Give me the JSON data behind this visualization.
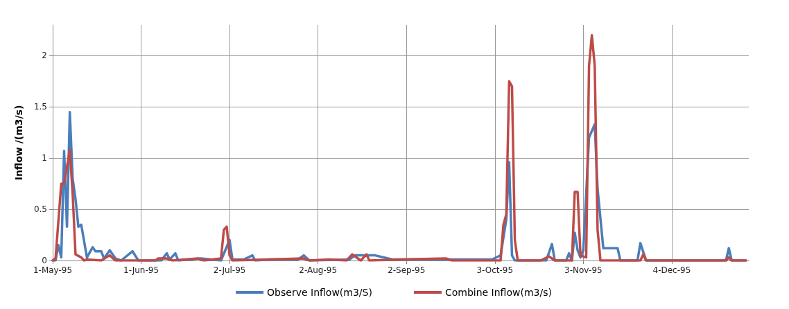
{
  "chart_data": {
    "type": "line",
    "ylabel": "Inflow /(m3/s)",
    "xlim": [
      "1995-05-01",
      "1995-12-31"
    ],
    "ylim": [
      0,
      2.3
    ],
    "yticks": [
      0,
      0.5,
      1,
      1.5,
      2
    ],
    "xticks": [
      {
        "value": "1995-05-01",
        "label": "1-May-95"
      },
      {
        "value": "1995-06-01",
        "label": "1-Jun-95"
      },
      {
        "value": "1995-07-02",
        "label": "2-Jul-95"
      },
      {
        "value": "1995-08-02",
        "label": "2-Aug-95"
      },
      {
        "value": "1995-09-02",
        "label": "2-Sep-95"
      },
      {
        "value": "1995-10-03",
        "label": "3-Oct-95"
      },
      {
        "value": "1995-11-03",
        "label": "3-Nov-95"
      },
      {
        "value": "1995-12-04",
        "label": "4-Dec-95"
      }
    ],
    "grid": true,
    "legend": "bottom",
    "marker": "none",
    "line_style": "solid",
    "series": [
      {
        "name": "Observe Inflow(m3/S)",
        "color": "#4a7ebb",
        "x": [
          "1995-05-01",
          "1995-05-02",
          "1995-05-03",
          "1995-05-04",
          "1995-05-05",
          "1995-05-06",
          "1995-05-07",
          "1995-05-08",
          "1995-05-09",
          "1995-05-10",
          "1995-05-11",
          "1995-05-13",
          "1995-05-15",
          "1995-05-16",
          "1995-05-18",
          "1995-05-19",
          "1995-05-21",
          "1995-05-23",
          "1995-05-25",
          "1995-05-29",
          "1995-05-31",
          "1995-06-08",
          "1995-06-10",
          "1995-06-11",
          "1995-06-13",
          "1995-06-14",
          "1995-06-18",
          "1995-06-22",
          "1995-06-29",
          "1995-07-02",
          "1995-07-03",
          "1995-07-07",
          "1995-07-10",
          "1995-07-11",
          "1995-07-16",
          "1995-07-26",
          "1995-07-28",
          "1995-07-30",
          "1995-08-13",
          "1995-08-15",
          "1995-08-22",
          "1995-08-25",
          "1995-08-28",
          "1995-10-02",
          "1995-10-05",
          "1995-10-07",
          "1995-10-08",
          "1995-10-09",
          "1995-10-10",
          "1995-10-21",
          "1995-10-23",
          "1995-10-24",
          "1995-10-28",
          "1995-10-29",
          "1995-10-30",
          "1995-10-31",
          "1995-11-01",
          "1995-11-02",
          "1995-11-03",
          "1995-11-05",
          "1995-11-07",
          "1995-11-08",
          "1995-11-10",
          "1995-11-15",
          "1995-11-16",
          "1995-11-22",
          "1995-11-23",
          "1995-11-25",
          "1995-12-23",
          "1995-12-24",
          "1995-12-25",
          "1995-12-30"
        ],
        "values": [
          0,
          0,
          0.15,
          0.03,
          1.07,
          0.33,
          1.45,
          0.8,
          0.6,
          0.33,
          0.35,
          0.03,
          0.13,
          0.09,
          0.09,
          0.02,
          0.1,
          0.02,
          0,
          0.09,
          0,
          0,
          0.07,
          0.01,
          0.07,
          0,
          0.01,
          0.02,
          0,
          0.2,
          0.01,
          0.01,
          0.05,
          0,
          0.01,
          0.01,
          0.05,
          0,
          0.01,
          0.05,
          0.05,
          0.03,
          0.01,
          0.01,
          0.05,
          0.4,
          0.96,
          0.05,
          0,
          0,
          0.16,
          0,
          0,
          0.07,
          0,
          0.27,
          0.1,
          0.03,
          0.1,
          1.2,
          1.33,
          0.7,
          0.12,
          0.12,
          0,
          0,
          0.17,
          0,
          0,
          0.12,
          0,
          0
        ]
      },
      {
        "name": "Combine Inflow(m3/s)",
        "color": "#be4b48",
        "x": [
          "1995-05-01",
          "1995-05-02",
          "1995-05-04",
          "1995-05-05",
          "1995-05-07",
          "1995-05-08",
          "1995-05-09",
          "1995-05-11",
          "1995-05-12",
          "1995-05-13",
          "1995-05-18",
          "1995-05-21",
          "1995-05-23",
          "1995-06-06",
          "1995-06-07",
          "1995-06-10",
          "1995-06-12",
          "1995-06-21",
          "1995-06-23",
          "1995-06-29",
          "1995-06-30",
          "1995-07-01",
          "1995-07-02",
          "1995-07-03",
          "1995-07-28",
          "1995-07-30",
          "1995-08-06",
          "1995-08-12",
          "1995-08-14",
          "1995-08-17",
          "1995-08-19",
          "1995-08-20",
          "1995-08-31",
          "1995-09-16",
          "1995-09-18",
          "1995-10-05",
          "1995-10-06",
          "1995-10-07",
          "1995-10-08",
          "1995-10-09",
          "1995-10-10",
          "1995-10-11",
          "1995-10-19",
          "1995-10-22",
          "1995-10-24",
          "1995-10-30",
          "1995-10-31",
          "1995-11-01",
          "1995-11-02",
          "1995-11-04",
          "1995-11-05",
          "1995-11-06",
          "1995-11-07",
          "1995-11-08",
          "1995-11-09",
          "1995-11-23",
          "1995-11-24",
          "1995-11-25",
          "1995-12-23",
          "1995-12-24",
          "1995-12-25",
          "1995-12-30"
        ],
        "values": [
          0,
          0.02,
          0.75,
          0.75,
          1.08,
          0.65,
          0.06,
          0.03,
          0,
          0.01,
          0,
          0.05,
          0,
          0,
          0.02,
          0.02,
          0,
          0.02,
          0,
          0.02,
          0.3,
          0.33,
          0.05,
          0,
          0.02,
          0,
          0.01,
          0,
          0.06,
          0,
          0.06,
          0,
          0.01,
          0.02,
          0,
          0,
          0.35,
          0.45,
          1.75,
          1.7,
          0.2,
          0,
          0,
          0.04,
          0,
          0,
          0.67,
          0.67,
          0.05,
          0.03,
          1.9,
          2.2,
          1.9,
          0.3,
          0,
          0,
          0.06,
          0,
          0,
          0.03,
          0,
          0
        ]
      }
    ]
  }
}
